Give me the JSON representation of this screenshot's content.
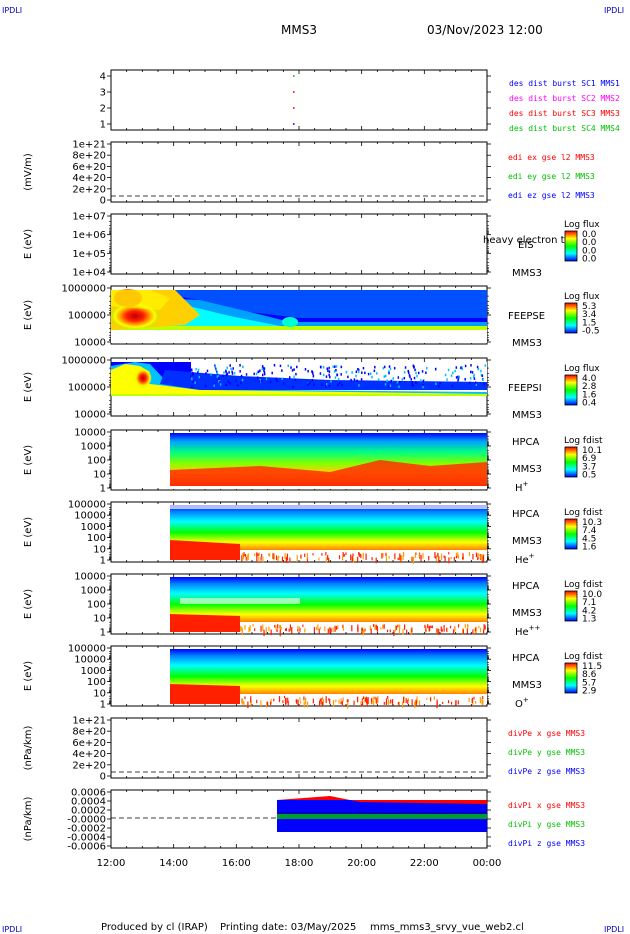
{
  "header": {
    "corner_tl": "IPDLI",
    "corner_tr": "IPDLI",
    "corner_bl": "IPDLI",
    "corner_br": "IPDLI",
    "spacecraft": "MMS3",
    "datetime": "03/Nov/2023 12:00"
  },
  "footer": {
    "produced": "Produced by cl (IRAP)",
    "printing": "Printing date: 03/May/2025",
    "script": "mms_mms3_srvy_vue_web2.cl"
  },
  "colors": {
    "red": "#ff0000",
    "green": "#00c000",
    "blue": "#0000ff",
    "magenta": "#ff00ff"
  },
  "chart_data": [
    {
      "type": "scatter",
      "x_ticks": [
        "12:00",
        "14:00",
        "16:00",
        "18:00",
        "20:00",
        "22:00",
        "00:00"
      ],
      "y_ticks": [
        "4",
        "3",
        "2",
        "1"
      ],
      "legend": [
        {
          "name": "des dist burst SC1 MMS1",
          "color": "#0000ff"
        },
        {
          "name": "des dist burst SC2 MMS2",
          "color": "#ff00ff"
        },
        {
          "name": "des dist burst SC3 MMS3",
          "color": "#ff0000"
        },
        {
          "name": "des dist burst SC4 MMS4",
          "color": "#00c000"
        }
      ],
      "points": [
        {
          "x": "17:50",
          "y": 4,
          "color": "#00c000"
        },
        {
          "x": "17:50",
          "y": 3,
          "color": "#ff0000"
        },
        {
          "x": "17:50",
          "y": 2,
          "color": "#ff0000"
        },
        {
          "x": "17:50",
          "y": 1,
          "color": "#0000ff"
        }
      ]
    },
    {
      "type": "line",
      "ylabel": "(mV/m)",
      "y_ticks": [
        "1e+21",
        "8e+20",
        "6e+20",
        "4e+20",
        "2e+20",
        "0"
      ],
      "legend": [
        {
          "name": "edi ex gse l2 MMS3",
          "color": "#ff0000"
        },
        {
          "name": "edi ey gse l2 MMS3",
          "color": "#00c000"
        },
        {
          "name": "edi ez gse l2 MMS3",
          "color": "#0000ff"
        }
      ]
    },
    {
      "type": "heatmap",
      "ylabel": "E (eV)",
      "y_ticks": [
        "1e+07",
        "1e+06",
        "1e+05",
        "1e+04"
      ],
      "instrument": "EIS",
      "overlay": "heavy electron to",
      "spacecraft": "MMS3",
      "colorbar_title": "Log flux",
      "colorbar_ticks": [
        "0.0",
        "0.0",
        "0.0",
        "0.0"
      ]
    },
    {
      "type": "heatmap",
      "ylabel": "E (eV)",
      "y_ticks": [
        "1000000",
        "100000",
        "10000"
      ],
      "instrument": "FEEPSE",
      "spacecraft": "MMS3",
      "colorbar_title": "Log flux",
      "colorbar_ticks": [
        "5.3",
        "3.4",
        "1.5",
        "-0.5"
      ]
    },
    {
      "type": "heatmap",
      "ylabel": "E (eV)",
      "y_ticks": [
        "1000000",
        "100000",
        "10000"
      ],
      "instrument": "FEEPSI",
      "spacecraft": "MMS3",
      "colorbar_title": "Log flux",
      "colorbar_ticks": [
        "4.0",
        "2.8",
        "1.6",
        "0.4"
      ]
    },
    {
      "type": "heatmap",
      "ylabel": "E (eV)",
      "y_ticks": [
        "10000",
        "1000",
        "100",
        "10",
        "1"
      ],
      "instrument": "HPCA",
      "spacecraft": "MMS3",
      "species": "H",
      "charge": "+",
      "colorbar_title": "Log fdist",
      "colorbar_ticks": [
        "10.1",
        "6.9",
        "3.7",
        "0.5"
      ]
    },
    {
      "type": "heatmap",
      "ylabel": "E (eV)",
      "y_ticks": [
        "100000",
        "10000",
        "1000",
        "100",
        "10",
        "1"
      ],
      "instrument": "HPCA",
      "spacecraft": "MMS3",
      "species": "He",
      "charge": "+",
      "colorbar_title": "Log fdist",
      "colorbar_ticks": [
        "10.3",
        "7.4",
        "4.5",
        "1.6"
      ]
    },
    {
      "type": "heatmap",
      "ylabel": "E (eV)",
      "y_ticks": [
        "10000",
        "1000",
        "100",
        "10",
        "1"
      ],
      "instrument": "HPCA",
      "spacecraft": "MMS3",
      "species": "He",
      "charge": "++",
      "colorbar_title": "Log fdist",
      "colorbar_ticks": [
        "10.0",
        "7.1",
        "4.2",
        "1.3"
      ]
    },
    {
      "type": "heatmap",
      "ylabel": "E (eV)",
      "y_ticks": [
        "100000",
        "10000",
        "1000",
        "100",
        "10",
        "1"
      ],
      "instrument": "HPCA",
      "spacecraft": "MMS3",
      "species": "O",
      "charge": "+",
      "colorbar_title": "Log fdist",
      "colorbar_ticks": [
        "11.5",
        "8.6",
        "5.7",
        "2.9"
      ]
    },
    {
      "type": "line",
      "ylabel": "(nPa/km)",
      "y_ticks": [
        "1e+21",
        "8e+20",
        "6e+20",
        "4e+20",
        "2e+20",
        "0"
      ],
      "legend": [
        {
          "name": "divPe x gse MMS3",
          "color": "#ff0000"
        },
        {
          "name": "divPe y gse MMS3",
          "color": "#00c000"
        },
        {
          "name": "divPe z gse MMS3",
          "color": "#0000ff"
        }
      ]
    },
    {
      "type": "line",
      "ylabel": "(nPa/km)",
      "y_ticks": [
        "0.0006",
        "0.0004",
        "0.0002",
        "-0.0000",
        "-0.0002",
        "-0.0004",
        "-0.0006"
      ],
      "legend": [
        {
          "name": "divPi x gse MMS3",
          "color": "#ff0000"
        },
        {
          "name": "divPi y gse MMS3",
          "color": "#00c000"
        },
        {
          "name": "divPi z gse MMS3",
          "color": "#0000ff"
        }
      ],
      "x_ticks": [
        "12:00",
        "14:00",
        "16:00",
        "18:00",
        "20:00",
        "22:00",
        "00:00"
      ]
    }
  ]
}
